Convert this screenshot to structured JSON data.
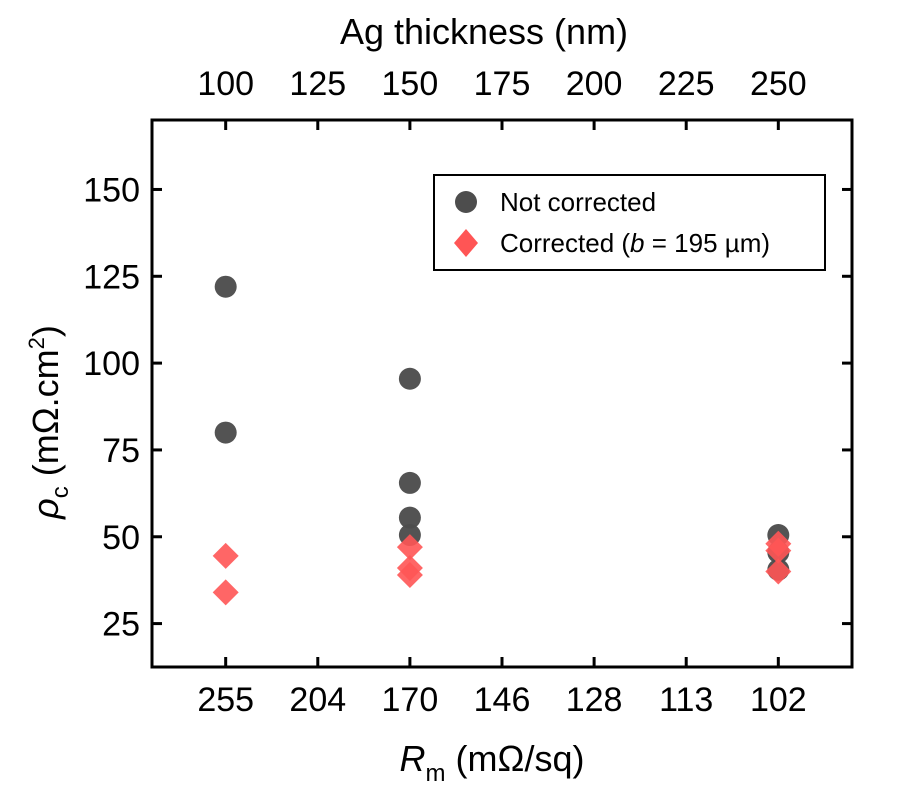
{
  "chart_data": {
    "type": "scatter",
    "top_axis": {
      "title": "Ag thickness (nm)",
      "ticks": [
        "100",
        "125",
        "150",
        "175",
        "200",
        "225",
        "250"
      ],
      "range": [
        80,
        270
      ]
    },
    "bottom_axis": {
      "title_main": "R",
      "title_sub": "m",
      "title_rest": " (mΩ/sq)",
      "ticks": [
        "255",
        "204",
        "170",
        "146",
        "128",
        "113",
        "102"
      ]
    },
    "y_axis": {
      "title_main": "ρ",
      "title_sub": "c",
      "title_rest": " (mΩ.cm",
      "title_sup": "2",
      "title_close": ")",
      "ticks": [
        25,
        50,
        75,
        100,
        125,
        150
      ],
      "range": [
        12.5,
        170
      ]
    },
    "series": [
      {
        "name": "Not corrected",
        "marker": "circle",
        "color": "#4d4d4d",
        "points": [
          {
            "x": 100,
            "y": 122
          },
          {
            "x": 100,
            "y": 80
          },
          {
            "x": 150,
            "y": 95.5
          },
          {
            "x": 150,
            "y": 65.5
          },
          {
            "x": 150,
            "y": 55.5
          },
          {
            "x": 150,
            "y": 50.5
          },
          {
            "x": 250,
            "y": 50.5
          },
          {
            "x": 250,
            "y": 45.5
          },
          {
            "x": 250,
            "y": 40.5
          }
        ]
      },
      {
        "name_prefix": "Corrected (",
        "name_var": "b",
        "name_suffix": " = 195 µm)",
        "marker": "diamond",
        "color": "#ff5555",
        "points": [
          {
            "x": 100,
            "y": 44.5
          },
          {
            "x": 100,
            "y": 34
          },
          {
            "x": 150,
            "y": 47
          },
          {
            "x": 150,
            "y": 41
          },
          {
            "x": 150,
            "y": 39
          },
          {
            "x": 250,
            "y": 48
          },
          {
            "x": 250,
            "y": 46
          },
          {
            "x": 250,
            "y": 40
          }
        ]
      }
    ],
    "legend_position": "top-right",
    "grid": false
  }
}
